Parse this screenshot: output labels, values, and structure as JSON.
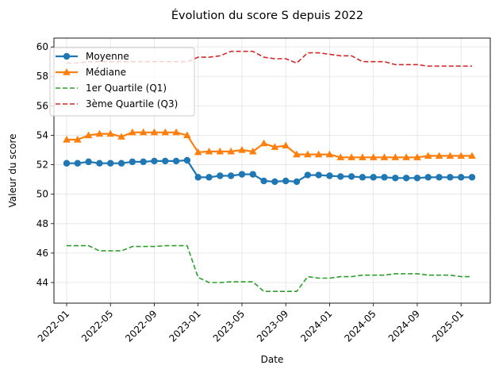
{
  "chart_data": {
    "type": "line",
    "title": "Évolution du score S depuis 2022",
    "xlabel": "Date",
    "ylabel": "Valeur du score",
    "ylim": [
      42.6,
      60.6
    ],
    "yticks": [
      44,
      46,
      48,
      50,
      52,
      54,
      56,
      58,
      60
    ],
    "xticks": [
      "2022-01",
      "2022-05",
      "2022-09",
      "2023-01",
      "2023-05",
      "2023-09",
      "2024-01",
      "2024-05",
      "2024-09",
      "2025-01"
    ],
    "x_start": "2022-01",
    "x_months": 38,
    "grid": true,
    "legend_position": "top-left",
    "series": [
      {
        "name": "Moyenne",
        "color": "#1f77b4",
        "style": "solid",
        "marker": "circle",
        "values": [
          52.1,
          52.1,
          52.2,
          52.1,
          52.1,
          52.1,
          52.2,
          52.2,
          52.25,
          52.25,
          52.25,
          52.3,
          51.15,
          51.15,
          51.25,
          51.25,
          51.35,
          51.35,
          50.9,
          50.85,
          50.9,
          50.85,
          51.3,
          51.3,
          51.25,
          51.2,
          51.2,
          51.15,
          51.15,
          51.15,
          51.1,
          51.1,
          51.1,
          51.15,
          51.15,
          51.15,
          51.15,
          51.15
        ]
      },
      {
        "name": "Médiane",
        "color": "#ff7f0e",
        "style": "solid",
        "marker": "triangle",
        "values": [
          53.7,
          53.7,
          54.0,
          54.1,
          54.1,
          53.9,
          54.2,
          54.2,
          54.2,
          54.2,
          54.2,
          54.0,
          52.85,
          52.9,
          52.9,
          52.9,
          53.0,
          52.9,
          53.45,
          53.2,
          53.3,
          52.7,
          52.7,
          52.7,
          52.7,
          52.5,
          52.5,
          52.5,
          52.5,
          52.5,
          52.5,
          52.5,
          52.5,
          52.6,
          52.6,
          52.6,
          52.6,
          52.6
        ]
      },
      {
        "name": "1er Quartile (Q1)",
        "color": "#2ca02c",
        "style": "dashed",
        "marker": "none",
        "values": [
          46.5,
          46.5,
          46.5,
          46.15,
          46.15,
          46.15,
          46.45,
          46.45,
          46.45,
          46.5,
          46.5,
          46.5,
          44.35,
          44.0,
          44.0,
          44.05,
          44.05,
          44.05,
          43.4,
          43.4,
          43.4,
          43.4,
          44.4,
          44.3,
          44.3,
          44.4,
          44.4,
          44.5,
          44.5,
          44.5,
          44.6,
          44.6,
          44.6,
          44.5,
          44.5,
          44.5,
          44.4,
          44.4
        ]
      },
      {
        "name": "3ème Quartile (Q3)",
        "color": "#d62728",
        "style": "dashed",
        "marker": "none",
        "values": [
          58.9,
          58.9,
          59.0,
          59.0,
          59.0,
          59.0,
          59.0,
          59.0,
          59.0,
          59.0,
          59.0,
          59.0,
          59.3,
          59.3,
          59.4,
          59.7,
          59.7,
          59.7,
          59.3,
          59.2,
          59.2,
          58.9,
          59.6,
          59.6,
          59.5,
          59.4,
          59.4,
          59.0,
          59.0,
          59.0,
          58.8,
          58.8,
          58.8,
          58.7,
          58.7,
          58.7,
          58.7,
          58.7
        ]
      }
    ]
  }
}
